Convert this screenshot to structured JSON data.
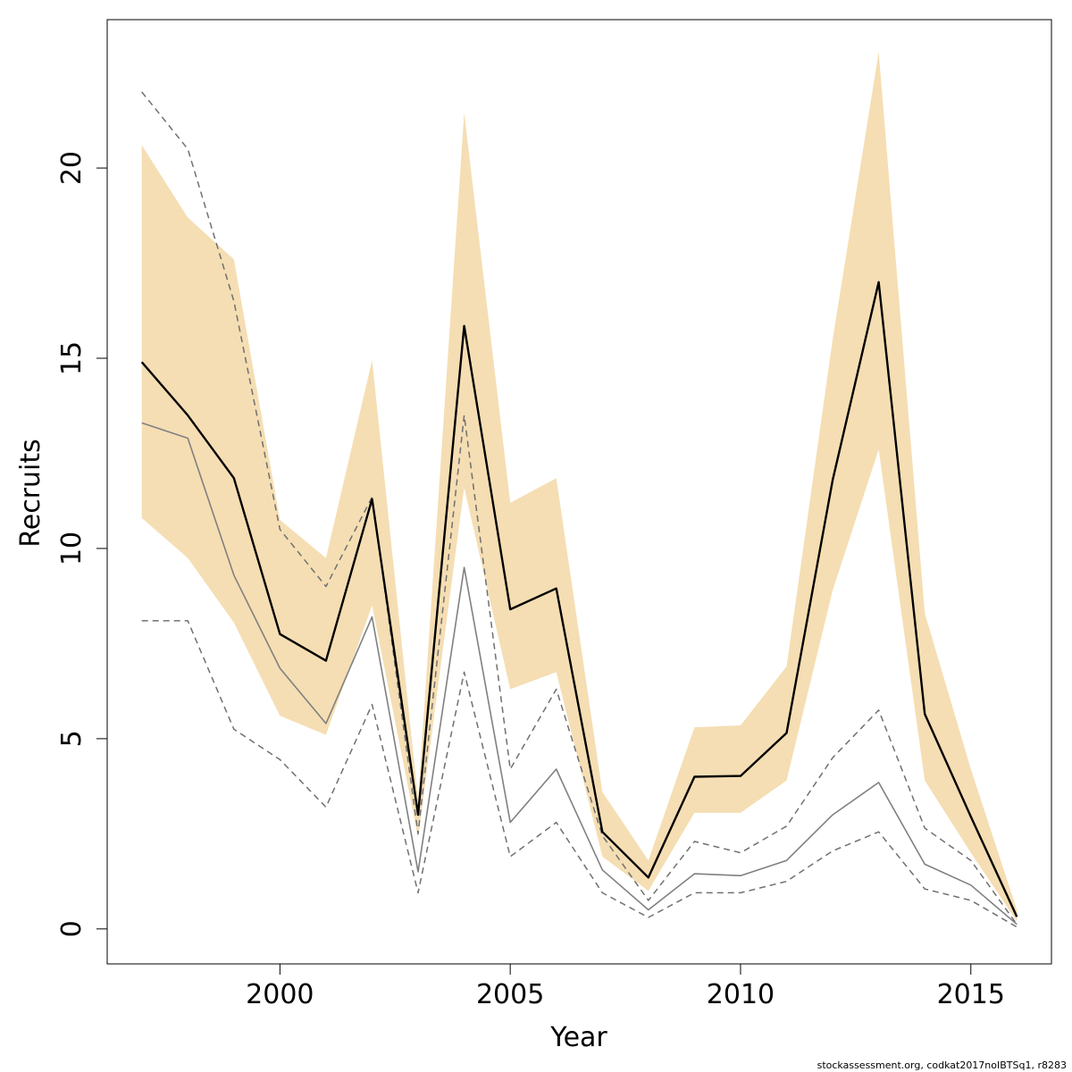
{
  "chart_data": {
    "type": "line",
    "xlabel": "Year",
    "ylabel": "Recruits",
    "xlim": [
      1996.25,
      2016.75
    ],
    "ylim": [
      -0.92,
      23.9
    ],
    "x_ticks": [
      2000,
      2005,
      2010,
      2015
    ],
    "x_tick_labels": [
      "2000",
      "2005",
      "2010",
      "2015"
    ],
    "y_ticks": [
      0,
      5,
      10,
      15,
      20
    ],
    "y_tick_labels": [
      "0",
      "5",
      "10",
      "15",
      "20"
    ],
    "x": [
      1997,
      1998,
      1999,
      2000,
      2001,
      2002,
      2003,
      2004,
      2005,
      2006,
      2007,
      2008,
      2009,
      2010,
      2011,
      2012,
      2013,
      2014,
      2015,
      2016
    ],
    "band": {
      "lower": [
        10.8,
        9.75,
        8.05,
        5.6,
        5.1,
        8.5,
        2.4,
        11.6,
        6.3,
        6.75,
        1.9,
        1.0,
        3.05,
        3.05,
        3.9,
        8.9,
        12.6,
        3.9,
        2.0,
        0.2
      ],
      "upper": [
        20.6,
        18.7,
        17.6,
        10.75,
        9.75,
        14.95,
        3.4,
        21.45,
        11.2,
        11.85,
        3.6,
        1.8,
        5.3,
        5.35,
        6.9,
        15.5,
        23.05,
        8.3,
        4.2,
        0.5
      ]
    },
    "series": [
      {
        "values": [
          14.9,
          13.5,
          11.85,
          7.75,
          7.05,
          11.3,
          3.0,
          15.85,
          8.4,
          8.95,
          2.55,
          1.35,
          4.0,
          4.02,
          5.15,
          11.8,
          17.0,
          5.65,
          2.95,
          0.32
        ]
      },
      {
        "values": [
          13.3,
          12.9,
          9.3,
          6.85,
          5.4,
          8.2,
          1.5,
          9.5,
          2.8,
          4.2,
          1.55,
          0.5,
          1.45,
          1.4,
          1.8,
          3.0,
          3.85,
          1.7,
          1.15,
          0.12
        ]
      },
      {
        "values": [
          22.0,
          20.5,
          16.5,
          10.5,
          9.0,
          11.35,
          2.5,
          13.5,
          4.2,
          6.3,
          2.45,
          0.75,
          2.3,
          2.0,
          2.7,
          4.5,
          5.75,
          2.65,
          1.8,
          0.12
        ]
      },
      {
        "values": [
          8.1,
          8.1,
          5.25,
          4.45,
          3.2,
          5.9,
          0.95,
          6.75,
          1.9,
          2.8,
          0.95,
          0.3,
          0.95,
          0.95,
          1.25,
          2.05,
          2.55,
          1.05,
          0.75,
          0.05
        ]
      }
    ],
    "colors": {
      "band": "#f5deb3",
      "estimate": "#000000",
      "previous": "#808080",
      "previous_ci": "#707070",
      "axis": "#000000"
    },
    "grid": false,
    "footer": "stockassessment.org, codkat2017noIBTSq1, r8283"
  }
}
